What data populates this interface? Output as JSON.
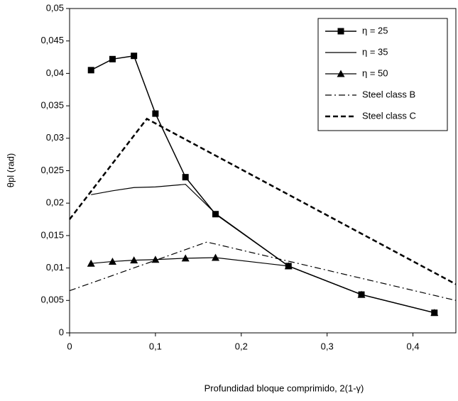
{
  "chart_data": {
    "type": "line",
    "x_label": "Profundidad bloque comprimido, 2(1-γ)",
    "y_label": "θpl (rad)",
    "xlim": [
      0,
      0.45
    ],
    "ylim": [
      0,
      0.05
    ],
    "xticks": [
      0,
      {
        "value": 0.1,
        "label": "0,1"
      },
      {
        "value": 0.2,
        "label": "0,2"
      },
      {
        "value": 0.3,
        "label": "0,3"
      },
      {
        "value": 0.4,
        "label": "0,4"
      }
    ],
    "yticks": [
      0,
      {
        "value": 0.005,
        "label": "0,005"
      },
      {
        "value": 0.01,
        "label": "0,01"
      },
      {
        "value": 0.015,
        "label": "0,015"
      },
      {
        "value": 0.02,
        "label": "0,02"
      },
      {
        "value": 0.025,
        "label": "0,025"
      },
      {
        "value": 0.03,
        "label": "0,03"
      },
      {
        "value": 0.035,
        "label": "0,035"
      },
      {
        "value": 0.04,
        "label": "0,04"
      },
      {
        "value": 0.045,
        "label": "0,045"
      },
      {
        "value": 0.05,
        "label": "0,05"
      }
    ],
    "legend": "top-right",
    "series": [
      {
        "name": "η = 25",
        "color": "#000000",
        "marker": "square",
        "dash": "solid",
        "width": 1.5,
        "x": [
          0.025,
          0.05,
          0.075,
          0.1,
          0.135,
          0.17,
          0.255,
          0.34,
          0.425
        ],
        "values": [
          0.0405,
          0.0422,
          0.0427,
          0.0338,
          0.024,
          0.0183,
          0.0103,
          0.0059,
          0.0031
        ]
      },
      {
        "name": "η = 35",
        "color": "#000000",
        "marker": "none",
        "dash": "solid",
        "width": 1.2,
        "x": [
          0.025,
          0.05,
          0.075,
          0.1,
          0.135,
          0.17,
          0.255,
          0.34,
          0.425
        ],
        "values": [
          0.0213,
          0.0219,
          0.0224,
          0.0225,
          0.0229,
          0.0184,
          0.0103,
          0.0059,
          0.0031
        ]
      },
      {
        "name": "η = 50",
        "color": "#000000",
        "marker": "triangle",
        "dash": "solid",
        "width": 1.2,
        "x": [
          0.025,
          0.05,
          0.075,
          0.1,
          0.135,
          0.17,
          0.255,
          0.34,
          0.425
        ],
        "values": [
          0.0107,
          0.011,
          0.0112,
          0.0113,
          0.0115,
          0.0116,
          0.0103,
          0.0059,
          0.0031
        ]
      },
      {
        "name": "Steel class B",
        "color": "#000000",
        "marker": "none",
        "dash": "dashdot",
        "width": 1.2,
        "x": [
          0,
          0.16,
          0.45
        ],
        "values": [
          0.0065,
          0.014,
          0.005
        ]
      },
      {
        "name": "Steel class C",
        "color": "#000000",
        "marker": "none",
        "dash": "dash",
        "width": 2.5,
        "x": [
          0,
          0.09,
          0.45
        ],
        "values": [
          0.0175,
          0.033,
          0.0075
        ]
      }
    ]
  }
}
